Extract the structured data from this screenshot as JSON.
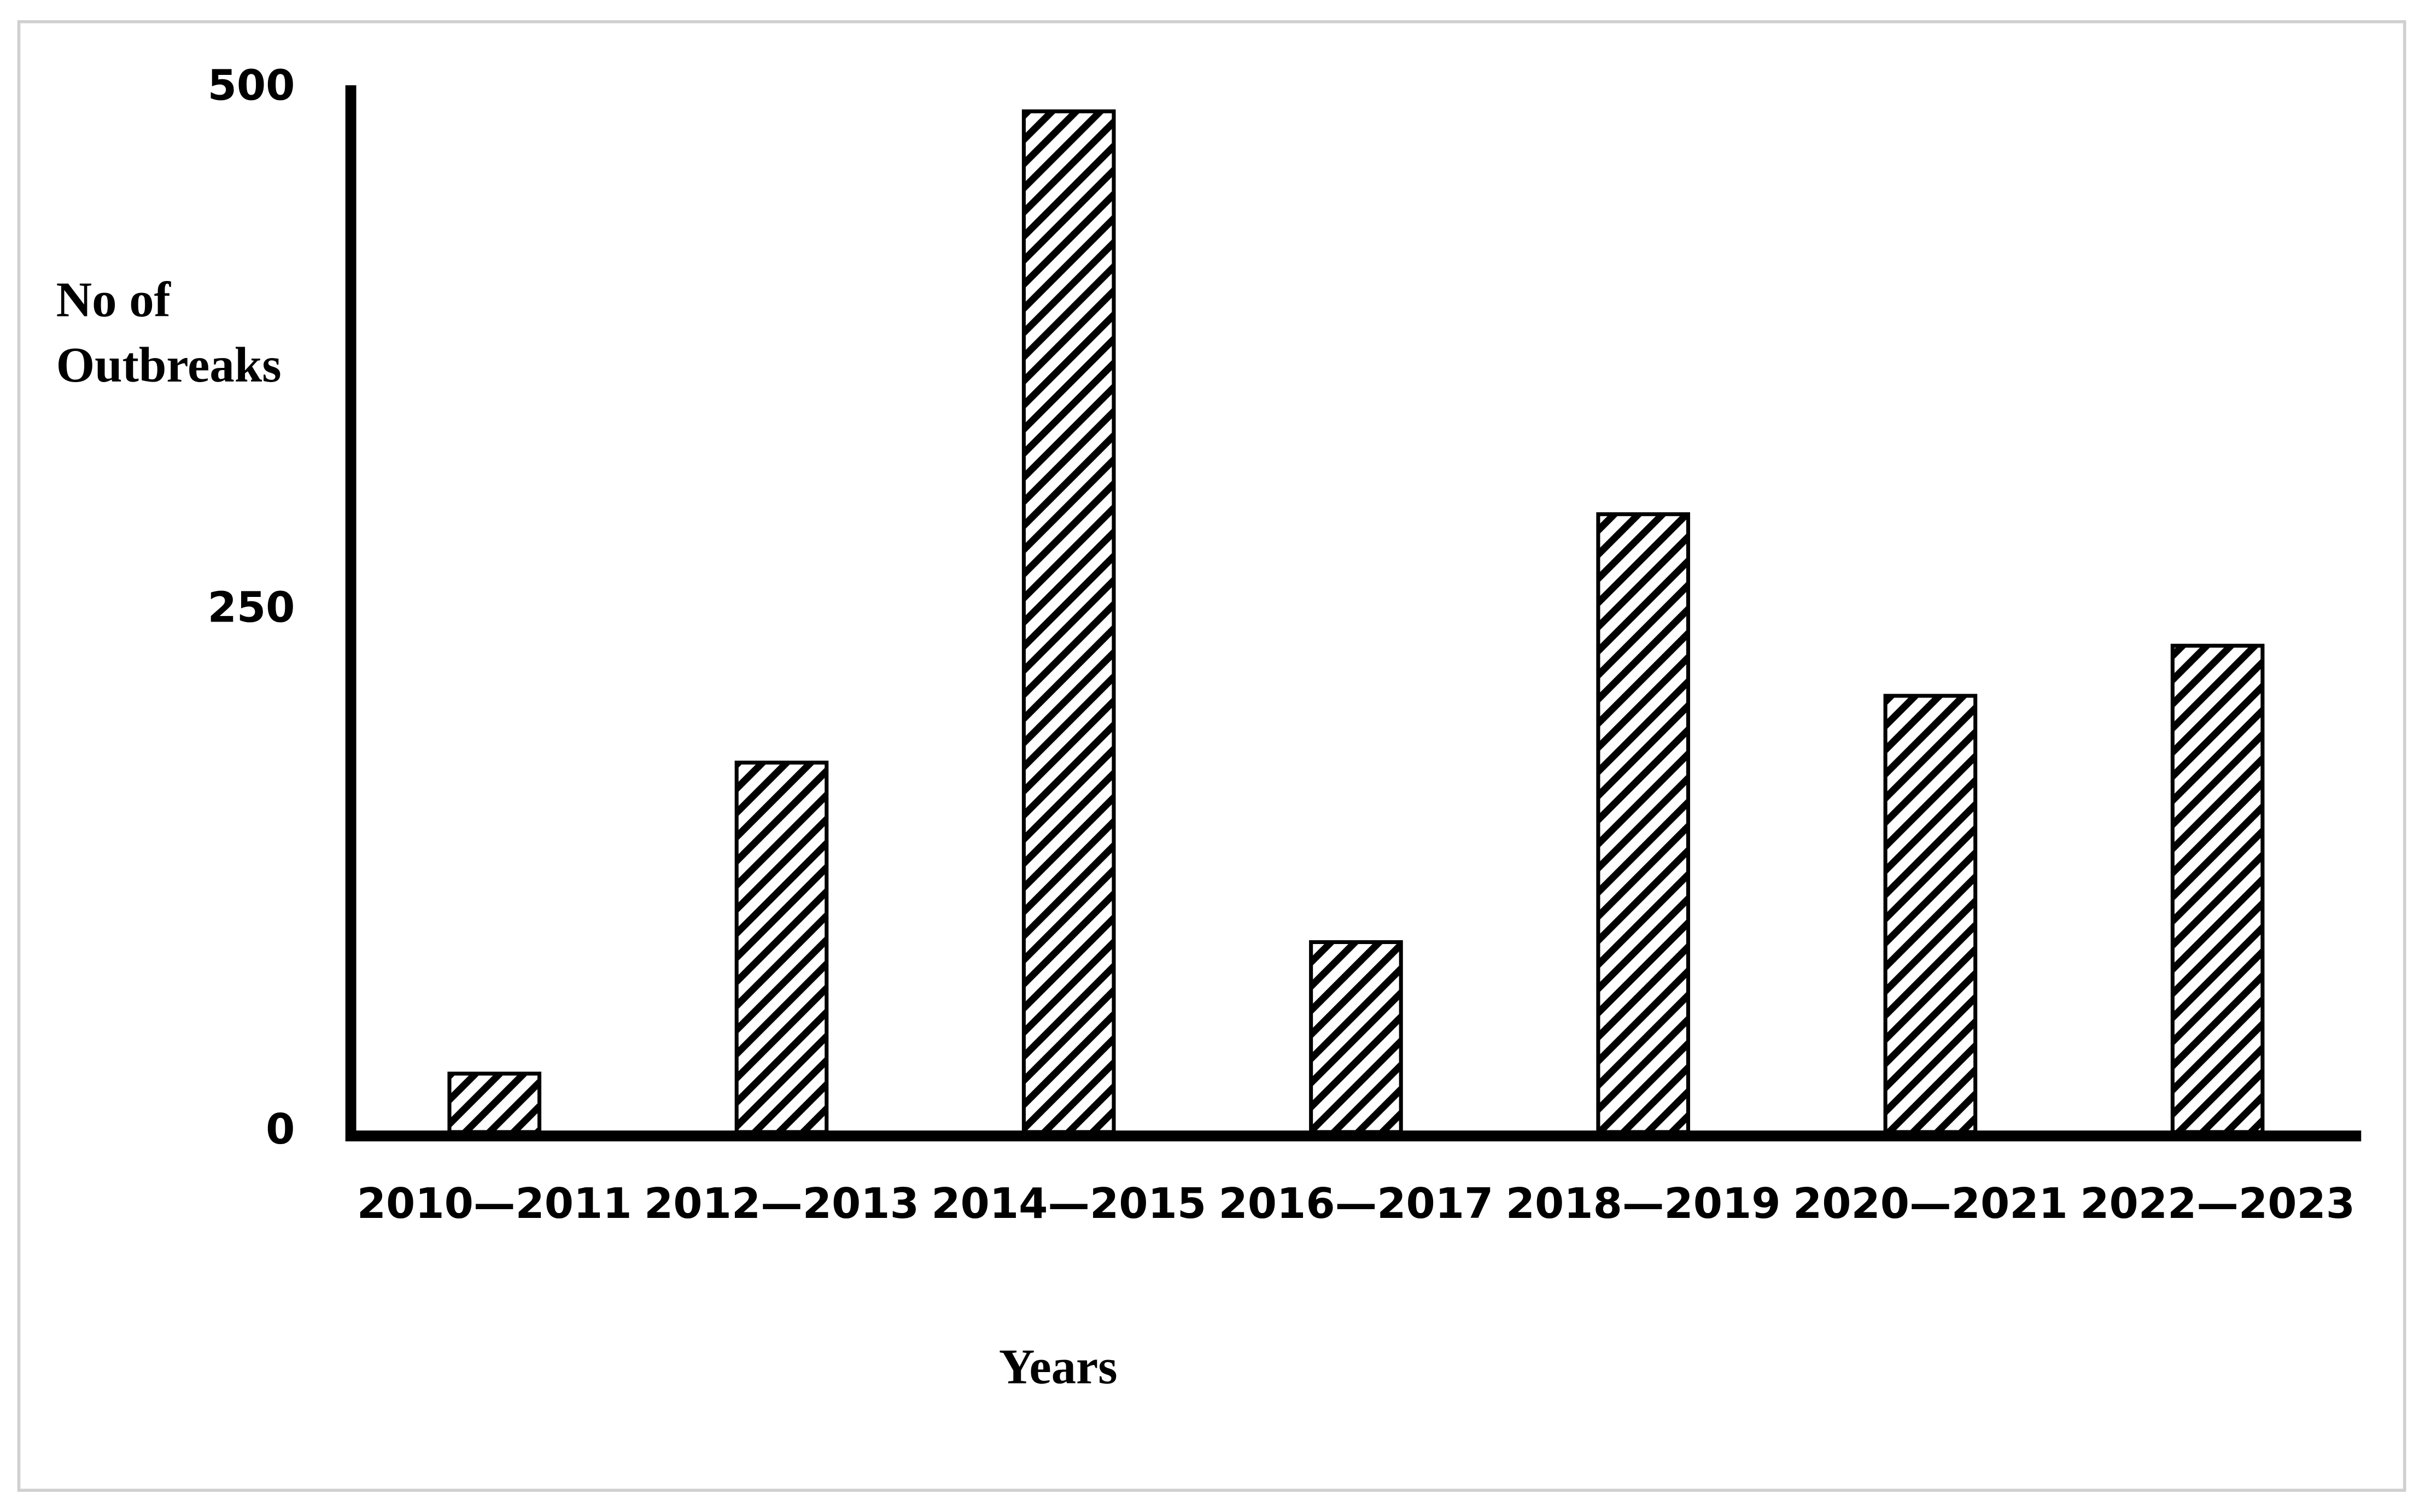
{
  "chart_data": {
    "type": "bar",
    "x_label": "Years",
    "y_label": "No of Outbreaks",
    "categories": [
      "2010—2011",
      "2012—2013",
      "2014—2015",
      "2016—2017",
      "2018—2019",
      "2020—2021",
      "2022—2023"
    ],
    "values": [
      28,
      177,
      489,
      91,
      296,
      209,
      233
    ],
    "color": "#000000",
    "ylim": [
      0,
      500
    ],
    "yticks": [
      0,
      250,
      500
    ],
    "grid": false
  }
}
